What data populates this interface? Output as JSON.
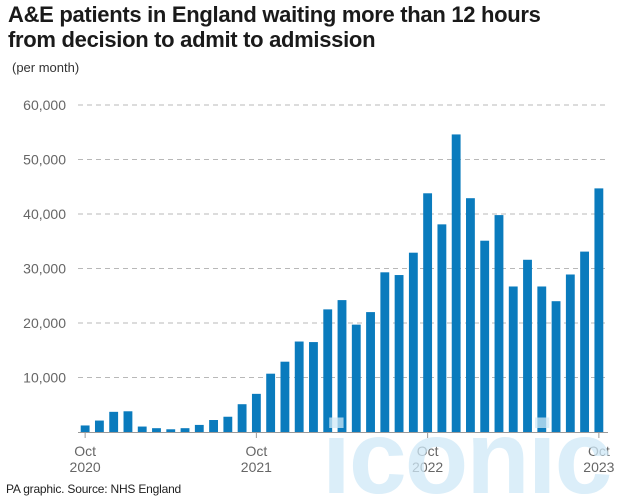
{
  "header": {
    "title_line1": "A&E patients in England waiting more than 12 hours",
    "title_line2": "from decision to admit to admission",
    "units": "(per month)"
  },
  "footer": {
    "source": "PA graphic. Source: NHS England"
  },
  "watermark": {
    "text": "iconic"
  },
  "colors": {
    "bar": "#0a7bbd",
    "grid": "#b8b8b8",
    "axis": "#9a9a9a",
    "tick_text": "#666666",
    "watermark": "#cfe8f7"
  },
  "chart_data": {
    "type": "bar",
    "title": "A&E patients in England waiting more than 12 hours from decision to admit to admission",
    "ylabel": "(per month)",
    "ylim": [
      0,
      60000
    ],
    "yticks": [
      10000,
      20000,
      30000,
      40000,
      50000,
      60000
    ],
    "ytick_labels": [
      "10,000",
      "20,000",
      "30,000",
      "40,000",
      "50,000",
      "60,000"
    ],
    "grid": true,
    "categories": [
      "Oct 2020",
      "Nov 2020",
      "Dec 2020",
      "Jan 2021",
      "Feb 2021",
      "Mar 2021",
      "Apr 2021",
      "May 2021",
      "Jun 2021",
      "Jul 2021",
      "Aug 2021",
      "Sep 2021",
      "Oct 2021",
      "Nov 2021",
      "Dec 2021",
      "Jan 2022",
      "Feb 2022",
      "Mar 2022",
      "Apr 2022",
      "May 2022",
      "Jun 2022",
      "Jul 2022",
      "Aug 2022",
      "Sep 2022",
      "Oct 2022",
      "Nov 2022",
      "Dec 2022",
      "Jan 2023",
      "Feb 2023",
      "Mar 2023",
      "Apr 2023",
      "May 2023",
      "Jun 2023",
      "Jul 2023",
      "Aug 2023",
      "Sep 2023",
      "Oct 2023"
    ],
    "values": [
      1200,
      2100,
      3700,
      3800,
      1000,
      700,
      500,
      700,
      1300,
      2200,
      2800,
      5100,
      7000,
      10700,
      12900,
      16600,
      16500,
      22500,
      24200,
      19700,
      22000,
      29300,
      28800,
      32900,
      43800,
      38100,
      54600,
      42900,
      35100,
      39800,
      26700,
      31600,
      26700,
      24000,
      28900,
      33100,
      44700
    ],
    "x_tick_labels": [
      {
        "index": 0,
        "month": "Oct",
        "year": "2020"
      },
      {
        "index": 12,
        "month": "Oct",
        "year": "2021"
      },
      {
        "index": 24,
        "month": "Oct",
        "year": "2022"
      },
      {
        "index": 36,
        "month": "Oct",
        "year": "2023"
      }
    ]
  }
}
